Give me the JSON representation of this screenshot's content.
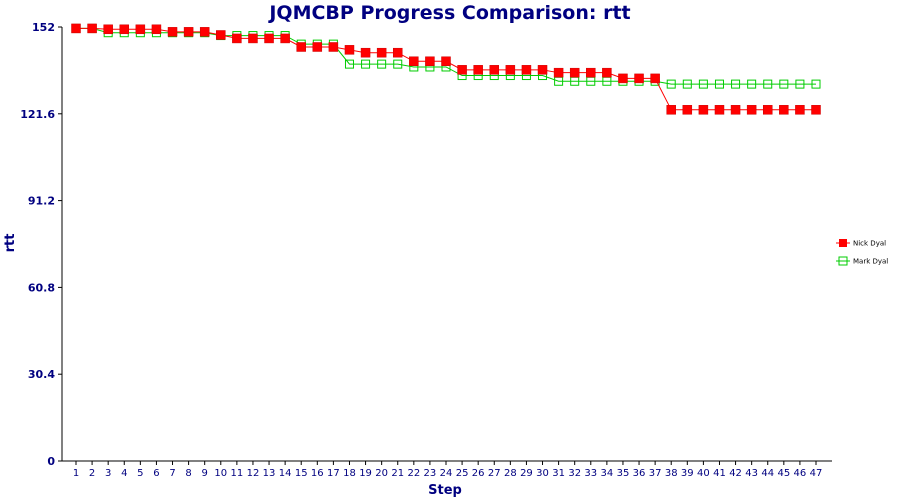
{
  "chart_data": {
    "type": "line",
    "title": "JQMCBP Progress Comparison: rtt",
    "xlabel": "Step",
    "ylabel": "rtt",
    "ylim": [
      0,
      152
    ],
    "yticks": [
      "0",
      "30.4",
      "60.8",
      "91.2",
      "121.6",
      "152"
    ],
    "x": [
      1,
      2,
      3,
      4,
      5,
      6,
      7,
      8,
      9,
      10,
      11,
      12,
      13,
      14,
      15,
      16,
      17,
      18,
      19,
      20,
      21,
      22,
      23,
      24,
      25,
      26,
      27,
      28,
      29,
      30,
      31,
      32,
      33,
      34,
      35,
      36,
      37,
      38,
      39,
      40,
      41,
      42,
      43,
      44,
      45,
      46,
      47
    ],
    "legend_position": "right",
    "grid": false,
    "series": [
      {
        "name": "Nick Dyal",
        "color": "#ff0000",
        "marker": "filled-square",
        "values": [
          151.5,
          151.5,
          151.2,
          151.2,
          151.2,
          151.2,
          150.3,
          150.3,
          150.3,
          149.2,
          148.0,
          148.0,
          148.0,
          148.0,
          145.0,
          145.0,
          145.0,
          144.0,
          143.0,
          143.0,
          143.0,
          140.0,
          140.0,
          140.0,
          137.0,
          137.0,
          137.0,
          137.0,
          137.0,
          137.0,
          136.0,
          136.0,
          136.0,
          136.0,
          134.0,
          134.0,
          134.0,
          123.0,
          123.0,
          123.0,
          123.0,
          123.0,
          123.0,
          123.0,
          123.0,
          123.0,
          123.0
        ]
      },
      {
        "name": "Mark Dyal",
        "color": "#00cc00",
        "marker": "open-square",
        "values": [
          151.5,
          151.5,
          150.0,
          150.0,
          150.0,
          150.0,
          150.0,
          150.0,
          150.0,
          149.0,
          149.0,
          149.0,
          149.0,
          149.0,
          146.0,
          146.0,
          146.0,
          139.0,
          139.0,
          139.0,
          139.0,
          138.0,
          138.0,
          138.0,
          135.0,
          135.0,
          135.0,
          135.0,
          135.0,
          135.0,
          133.0,
          133.0,
          133.0,
          133.0,
          133.0,
          133.0,
          133.0,
          132.0,
          132.0,
          132.0,
          132.0,
          132.0,
          132.0,
          132.0,
          132.0,
          132.0,
          132.0
        ]
      }
    ]
  }
}
